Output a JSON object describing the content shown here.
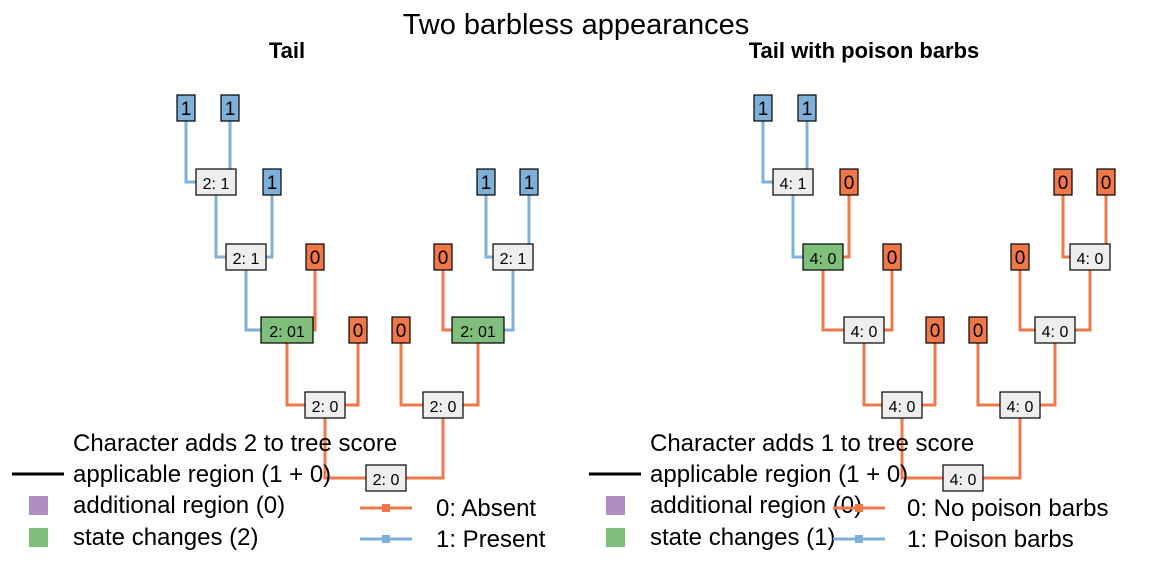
{
  "title": "Two barbless appearances",
  "colors": {
    "blue": "#7fb1d8",
    "orange": "#f0774a",
    "green": "#7fbf7b",
    "purple": "#af8dc3",
    "neutral": "#eeeeee",
    "text": "#000000"
  },
  "panels": [
    {
      "title": "Tail",
      "tips": [
        "1",
        "1",
        "1",
        "0",
        "0",
        "0",
        "1",
        "1"
      ],
      "nodes": [
        "2: 1",
        "2: 1",
        "2: 01",
        "2: 0",
        "2: 0",
        "2: 01",
        "2: 1"
      ],
      "root": "2: 0",
      "legend": {
        "score_line1": "Character adds 2 to tree score",
        "applicable": "applicable region (1 + 0)",
        "additional": "additional region (0)",
        "changes": "state changes (2)",
        "state0": "0: Absent",
        "state1": "1: Present"
      }
    },
    {
      "title": "Tail with poison barbs",
      "tips": [
        "1",
        "1",
        "0",
        "0",
        "0",
        "0",
        "0",
        "0"
      ],
      "nodes": [
        "4: 1",
        "4: 0",
        "4: 0",
        "4: 0",
        "4: 0",
        "4: 0",
        "4: 0"
      ],
      "root": "4: 0",
      "legend": {
        "score_line1": "Character adds 1 to tree score",
        "applicable": "applicable region (1 + 0)",
        "additional": "additional region (0)",
        "changes": "state changes (1)",
        "state0": "0: No poison barbs",
        "state1": "1: Poison barbs"
      }
    }
  ]
}
